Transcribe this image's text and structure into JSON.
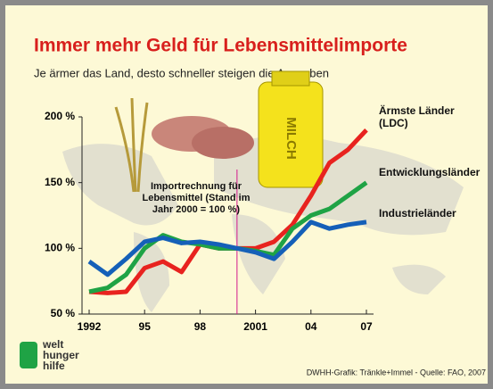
{
  "chart_data": {
    "type": "line",
    "title": "Immer mehr Geld für Lebensmittelimporte",
    "subtitle": "Je ärmer das Land, desto schneller steigen die Ausgaben",
    "annotation": "Importrechnung für Lebensmittel (Stand im Jahr 2000 = 100 %)",
    "reference_x": 2000,
    "illustration_text": "MILCH",
    "logo": "welt hunger hilfe",
    "source": "DWHH-Grafik: Tränkle+Immel - Quelle: FAO, 2007",
    "x": [
      1992,
      1993,
      1994,
      1995,
      1996,
      1997,
      1998,
      1999,
      2000,
      2001,
      2002,
      2003,
      2004,
      2005,
      2006,
      2007
    ],
    "xlim": [
      1992,
      2007
    ],
    "xticks": [
      {
        "value": 1992,
        "label": "1992"
      },
      {
        "value": 1995,
        "label": "95"
      },
      {
        "value": 1998,
        "label": "98"
      },
      {
        "value": 2001,
        "label": "2001"
      },
      {
        "value": 2004,
        "label": "04"
      },
      {
        "value": 2007,
        "label": "07"
      }
    ],
    "ylim": [
      50,
      200
    ],
    "yticks": [
      {
        "value": 50,
        "label": "50 %"
      },
      {
        "value": 100,
        "label": "100 %"
      },
      {
        "value": 150,
        "label": "150 %"
      },
      {
        "value": 200,
        "label": "200 %"
      }
    ],
    "series": [
      {
        "name": "Ärmste Länder (LDC)",
        "color": "#e8231f",
        "values": [
          67,
          66,
          67,
          85,
          90,
          82,
          103,
          100,
          100,
          100,
          105,
          118,
          140,
          165,
          175,
          190
        ]
      },
      {
        "name": "Entwicklungsländer",
        "color": "#1fa345",
        "values": [
          67,
          70,
          80,
          100,
          110,
          105,
          103,
          100,
          100,
          98,
          95,
          115,
          125,
          130,
          140,
          150
        ]
      },
      {
        "name": "Industrieländer",
        "color": "#1560b8",
        "values": [
          90,
          80,
          92,
          105,
          108,
          104,
          105,
          103,
          100,
          97,
          92,
          105,
          120,
          115,
          118,
          120
        ]
      }
    ]
  }
}
